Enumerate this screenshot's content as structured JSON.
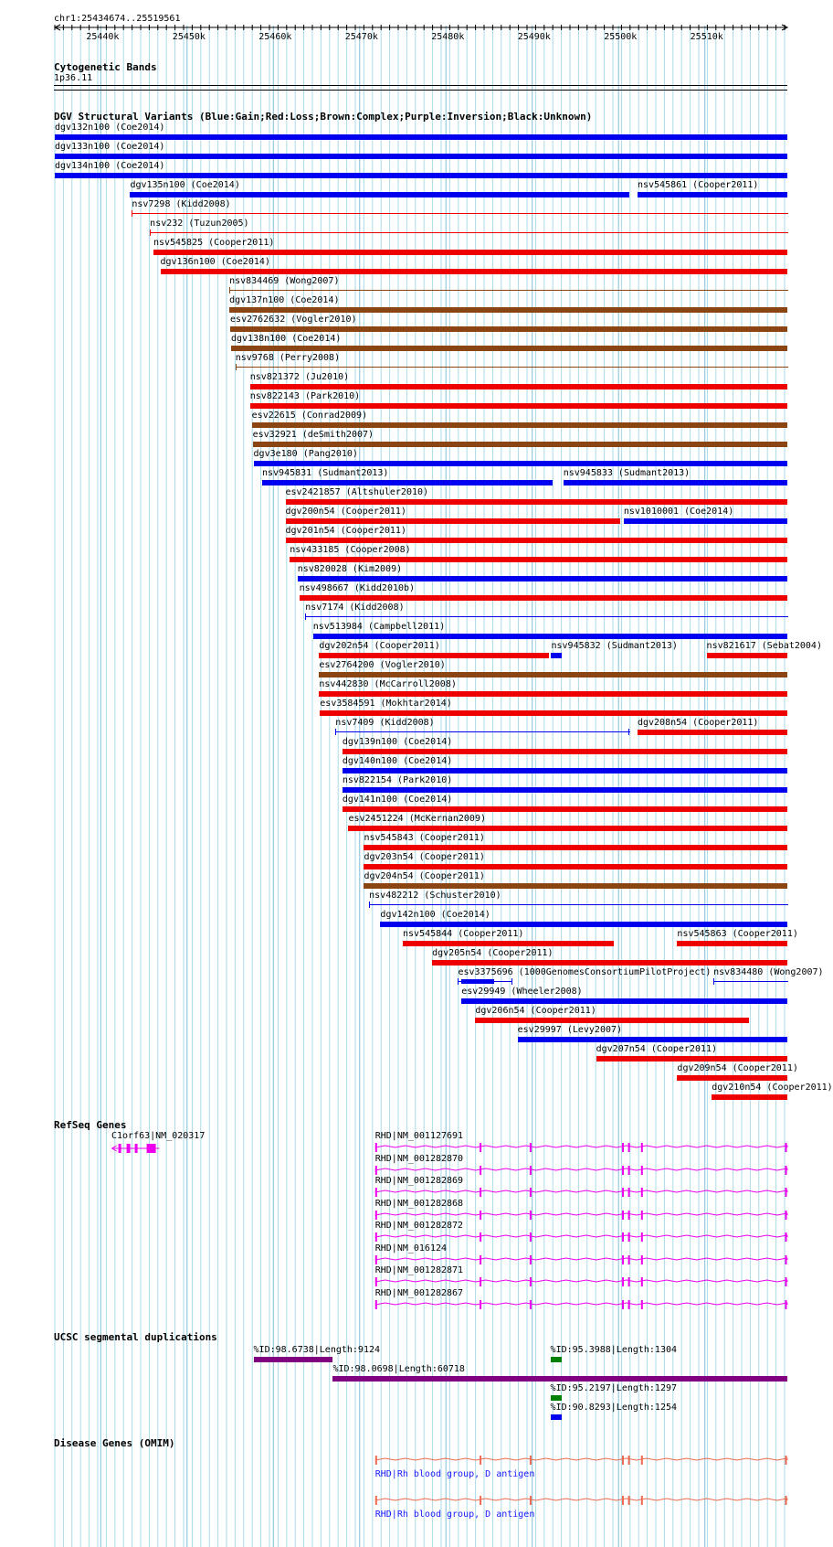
{
  "ruler": {
    "position": "chr1:25434674..25519561",
    "ticks": [
      "25440k",
      "25450k",
      "25460k",
      "25470k",
      "25480k",
      "25490k",
      "25500k",
      "25510k"
    ],
    "tick_coords": [
      25440000,
      25450000,
      25460000,
      25470000,
      25480000,
      25490000,
      25500000,
      25510000
    ]
  },
  "colors": {
    "gain": "#0000ee",
    "loss": "#ee0000",
    "complex": "#8b4513",
    "inversion": "#800080",
    "unknown": "#000000",
    "gene": "#ee00ee",
    "omim": "#ee6a50",
    "segdup_purple": "#800080",
    "segdup_green": "#008000",
    "segdup_blue": "#0000ee",
    "grid": "#aadbe8"
  },
  "cytoband": {
    "title": "Cytogenetic Bands",
    "band": "1p36.11"
  },
  "dgv": {
    "title": "DGV Structural Variants (Blue:Gain;Red:Loss;Brown:Complex;Purple:Inversion;Black:Unknown)",
    "variants": [
      {
        "label": "dgv132n100 (Coe2014)",
        "start": 25434674,
        "end": 25519561,
        "type": "gain",
        "style": "thick"
      },
      {
        "label": "dgv133n100 (Coe2014)",
        "start": 25434674,
        "end": 25519561,
        "type": "gain",
        "style": "thick"
      },
      {
        "label": "dgv134n100 (Coe2014)",
        "start": 25434674,
        "end": 25519561,
        "type": "gain",
        "style": "thick"
      },
      {
        "label": "dgv135n100 (Coe2014)",
        "start": 25443400,
        "end": 25501200,
        "type": "gain",
        "style": "thick"
      },
      {
        "label": "nsv545861 (Cooper2011)",
        "start": 25502200,
        "end": 25519561,
        "type": "gain",
        "style": "thick"
      },
      {
        "label": "nsv7298 (Kidd2008)",
        "start": 25443600,
        "end": 25519561,
        "type": "loss",
        "style": "thin"
      },
      {
        "label": "nsv232 (Tuzun2005)",
        "start": 25445700,
        "end": 25519561,
        "type": "loss",
        "style": "thin"
      },
      {
        "label": "nsv545825 (Cooper2011)",
        "start": 25446100,
        "end": 25519561,
        "type": "loss",
        "style": "thick"
      },
      {
        "label": "dgv136n100 (Coe2014)",
        "start": 25446900,
        "end": 25519561,
        "type": "loss",
        "style": "thick"
      },
      {
        "label": "nsv834469 (Wong2007)",
        "start": 25454900,
        "end": 25519561,
        "type": "complex",
        "style": "thin"
      },
      {
        "label": "dgv137n100 (Coe2014)",
        "start": 25454900,
        "end": 25519561,
        "type": "complex",
        "style": "thick"
      },
      {
        "label": "esv2762632 (Vogler2010)",
        "start": 25455000,
        "end": 25519561,
        "type": "complex",
        "style": "thick"
      },
      {
        "label": "dgv138n100 (Coe2014)",
        "start": 25455100,
        "end": 25519561,
        "type": "complex",
        "style": "thick"
      },
      {
        "label": "nsv9768 (Perry2008)",
        "start": 25455600,
        "end": 25519561,
        "type": "complex",
        "style": "thin"
      },
      {
        "label": "nsv821372 (Ju2010)",
        "start": 25457300,
        "end": 25519561,
        "type": "loss",
        "style": "thick"
      },
      {
        "label": "nsv822143 (Park2010)",
        "start": 25457300,
        "end": 25519561,
        "type": "loss",
        "style": "thick"
      },
      {
        "label": "esv22615 (Conrad2009)",
        "start": 25457500,
        "end": 25519561,
        "type": "complex",
        "style": "thick"
      },
      {
        "label": "esv32921 (deSmith2007)",
        "start": 25457600,
        "end": 25519561,
        "type": "complex",
        "style": "thick"
      },
      {
        "label": "dgv3e180 (Pang2010)",
        "start": 25457700,
        "end": 25519561,
        "type": "gain",
        "style": "thick"
      },
      {
        "label": "nsv945831 (Sudmant2013)",
        "start": 25458700,
        "end": 25492400,
        "type": "gain",
        "style": "thick"
      },
      {
        "label": "nsv945833 (Sudmant2013)",
        "start": 25493600,
        "end": 25519561,
        "type": "gain",
        "style": "thick"
      },
      {
        "label": "esv2421857 (Altshuler2010)",
        "start": 25461400,
        "end": 25519561,
        "type": "loss",
        "style": "thick"
      },
      {
        "label": "dgv200n54 (Cooper2011)",
        "start": 25461400,
        "end": 25500200,
        "type": "loss",
        "style": "thick"
      },
      {
        "label": "nsv1010001 (Coe2014)",
        "start": 25500600,
        "end": 25519561,
        "type": "gain",
        "style": "thick"
      },
      {
        "label": "dgv201n54 (Cooper2011)",
        "start": 25461400,
        "end": 25519561,
        "type": "loss",
        "style": "thick"
      },
      {
        "label": "nsv433185 (Cooper2008)",
        "start": 25461900,
        "end": 25519561,
        "type": "loss",
        "style": "thick"
      },
      {
        "label": "nsv820028 (Kim2009)",
        "start": 25462800,
        "end": 25519561,
        "type": "gain",
        "style": "thick"
      },
      {
        "label": "nsv498667 (Kidd2010b)",
        "start": 25463000,
        "end": 25519561,
        "type": "loss",
        "style": "thick"
      },
      {
        "label": "nsv7174 (Kidd2008)",
        "start": 25463700,
        "end": 25519561,
        "type": "gain",
        "style": "thin"
      },
      {
        "label": "nsv513984 (Campbell2011)",
        "start": 25464600,
        "end": 25519561,
        "type": "gain",
        "style": "thick"
      },
      {
        "label": "dgv202n54 (Cooper2011)",
        "start": 25465300,
        "end": 25491900,
        "type": "loss",
        "style": "thick"
      },
      {
        "label": "nsv945832 (Sudmant2013)",
        "start": 25492200,
        "end": 25493400,
        "type": "gain",
        "style": "thick"
      },
      {
        "label": "nsv821617 (Sebat2004)",
        "start": 25510200,
        "end": 25519561,
        "type": "loss",
        "style": "thick"
      },
      {
        "label": "esv2764200 (Vogler2010)",
        "start": 25465300,
        "end": 25519561,
        "type": "complex",
        "style": "thick"
      },
      {
        "label": "nsv442830 (McCarroll2008)",
        "start": 25465300,
        "end": 25519561,
        "type": "loss",
        "style": "thick"
      },
      {
        "label": "esv3584591 (Mokhtar2014)",
        "start": 25465400,
        "end": 25519561,
        "type": "loss",
        "style": "thick"
      },
      {
        "label": "nsv7409 (Kidd2008)",
        "start": 25467200,
        "end": 25501300,
        "type": "gain",
        "style": "thin"
      },
      {
        "label": "dgv208n54 (Cooper2011)",
        "start": 25502200,
        "end": 25519561,
        "type": "loss",
        "style": "thick"
      },
      {
        "label": "dgv139n100 (Coe2014)",
        "start": 25468000,
        "end": 25519561,
        "type": "loss",
        "style": "thick"
      },
      {
        "label": "dgv140n100 (Coe2014)",
        "start": 25468000,
        "end": 25519561,
        "type": "gain",
        "style": "thick"
      },
      {
        "label": "nsv822154 (Park2010)",
        "start": 25468000,
        "end": 25519561,
        "type": "gain",
        "style": "thick"
      },
      {
        "label": "dgv141n100 (Coe2014)",
        "start": 25468000,
        "end": 25519561,
        "type": "loss",
        "style": "thick"
      },
      {
        "label": "esv2451224 (McKernan2009)",
        "start": 25468700,
        "end": 25519561,
        "type": "loss",
        "style": "thick"
      },
      {
        "label": "nsv545843 (Cooper2011)",
        "start": 25470500,
        "end": 25519561,
        "type": "loss",
        "style": "thick"
      },
      {
        "label": "dgv203n54 (Cooper2011)",
        "start": 25470500,
        "end": 25519561,
        "type": "loss",
        "style": "thick"
      },
      {
        "label": "dgv204n54 (Cooper2011)",
        "start": 25470500,
        "end": 25519561,
        "type": "complex",
        "style": "thick"
      },
      {
        "label": "nsv482212 (Schuster2010)",
        "start": 25471100,
        "end": 25519561,
        "type": "gain",
        "style": "thin"
      },
      {
        "label": "dgv142n100 (Coe2014)",
        "start": 25472400,
        "end": 25519561,
        "type": "gain",
        "style": "thick"
      },
      {
        "label": "nsv545844 (Cooper2011)",
        "start": 25475000,
        "end": 25499500,
        "type": "loss",
        "style": "thick"
      },
      {
        "label": "nsv545863 (Cooper2011)",
        "start": 25506800,
        "end": 25519561,
        "type": "loss",
        "style": "thick"
      },
      {
        "label": "dgv205n54 (Cooper2011)",
        "start": 25478400,
        "end": 25519561,
        "type": "loss",
        "style": "thick"
      },
      {
        "label": "esv3375696 (1000GenomesConsortiumPilotProject)",
        "start": 25481400,
        "end": 25487700,
        "type": "gain",
        "style": "dumbbell"
      },
      {
        "label": "nsv834480 (Wong2007)",
        "start": 25511000,
        "end": 25519561,
        "type": "gain",
        "style": "thin"
      },
      {
        "label": "esv29949 (Wheeler2008)",
        "start": 25481800,
        "end": 25519561,
        "type": "gain",
        "style": "thick"
      },
      {
        "label": "dgv206n54 (Cooper2011)",
        "start": 25483400,
        "end": 25515100,
        "type": "loss",
        "style": "thick"
      },
      {
        "label": "esv29997 (Levy2007)",
        "start": 25488300,
        "end": 25519561,
        "type": "gain",
        "style": "thick"
      },
      {
        "label": "dgv207n54 (Cooper2011)",
        "start": 25497400,
        "end": 25519561,
        "type": "loss",
        "style": "thick"
      },
      {
        "label": "dgv209n54 (Cooper2011)",
        "start": 25506800,
        "end": 25519561,
        "type": "loss",
        "style": "thick"
      },
      {
        "label": "dgv210n54 (Cooper2011)",
        "start": 25510800,
        "end": 25519561,
        "type": "loss",
        "style": "thick"
      }
    ]
  },
  "refseq": {
    "title": "RefSeq Genes",
    "c1orf63": {
      "label": "C1orf63|NM_020317",
      "start": 25441300,
      "end": 25446800
    },
    "rhd_transcripts": [
      "RHD|NM_001127691",
      "RHD|NM_001282870",
      "RHD|NM_001282869",
      "RHD|NM_001282868",
      "RHD|NM_001282872",
      "RHD|NM_016124",
      "RHD|NM_001282871",
      "RHD|NM_001282867"
    ],
    "rhd_start": 25471800,
    "rhd_end": 25519561,
    "rhd_exons": [
      25471800,
      25483900,
      25489700,
      25500400,
      25501100,
      25502600,
      25519300
    ]
  },
  "segdups": {
    "title": "UCSC segmental duplications",
    "items": [
      {
        "label": "%ID:98.6738|Length:9124",
        "start": 25457700,
        "end": 25466900,
        "color": "purple"
      },
      {
        "label": "%ID:95.3988|Length:1304",
        "start": 25492100,
        "end": 25493400,
        "color": "green"
      },
      {
        "label": "%ID:98.0698|Length:60718",
        "start": 25466900,
        "end": 25519561,
        "color": "purple"
      },
      {
        "label": "%ID:95.2197|Length:1297",
        "start": 25492100,
        "end": 25493400,
        "color": "green"
      },
      {
        "label": "%ID:90.8293|Length:1254",
        "start": 25492100,
        "end": 25493400,
        "color": "blue"
      }
    ]
  },
  "omim": {
    "title": "Disease Genes (OMIM)",
    "items": [
      {
        "label": "RHD|Rh blood group, D antigen",
        "start": 25471800,
        "end": 25519561
      },
      {
        "label": "RHD|Rh blood group, D antigen",
        "start": 25471800,
        "end": 25519561
      }
    ]
  }
}
